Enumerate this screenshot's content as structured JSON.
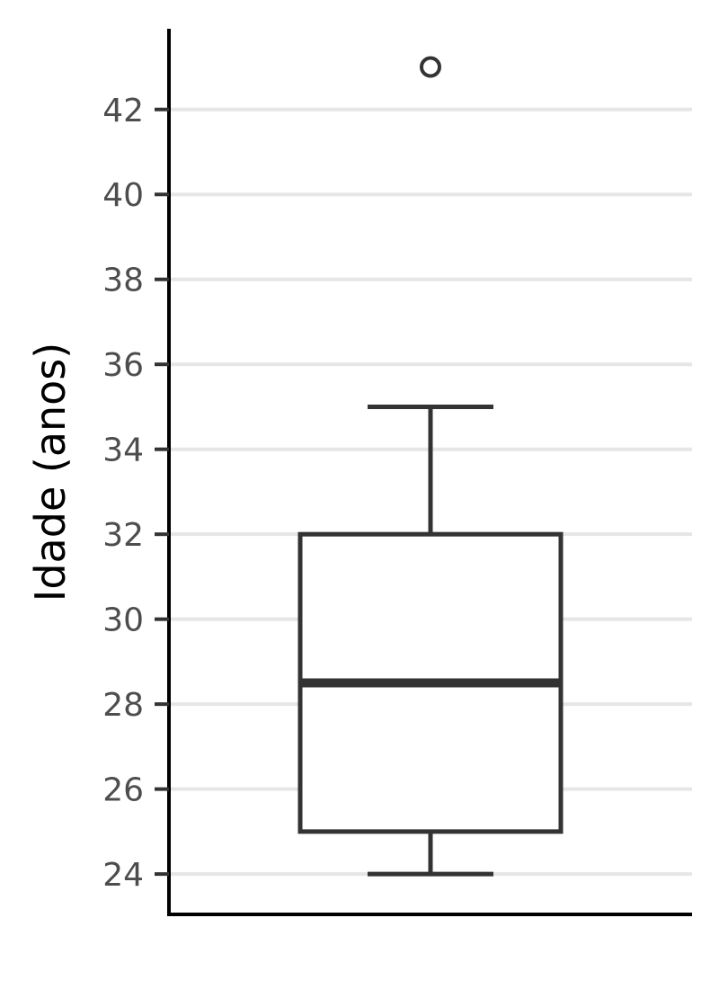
{
  "chart_data": {
    "type": "boxplot",
    "ylabel": "Idade (anos)",
    "xlabel": "",
    "ylim": [
      23.05,
      43.9
    ],
    "y_ticks": [
      24,
      26,
      28,
      30,
      32,
      34,
      36,
      38,
      40,
      42
    ],
    "y_tick_labels": [
      "24",
      "26",
      "28",
      "30",
      "32",
      "34",
      "36",
      "38",
      "40",
      "42"
    ],
    "grid": "horizontal major",
    "legend": "none",
    "box": {
      "whisker_low": 24,
      "q1": 25,
      "median": 28.5,
      "q3": 32,
      "whisker_high": 35,
      "outliers": [
        43
      ]
    },
    "colors": {
      "box_stroke": "#333333",
      "box_fill": "#ffffff",
      "grid": "#e6e6e6",
      "axis": "#000000",
      "tick_label": "#4d4d4d"
    }
  }
}
